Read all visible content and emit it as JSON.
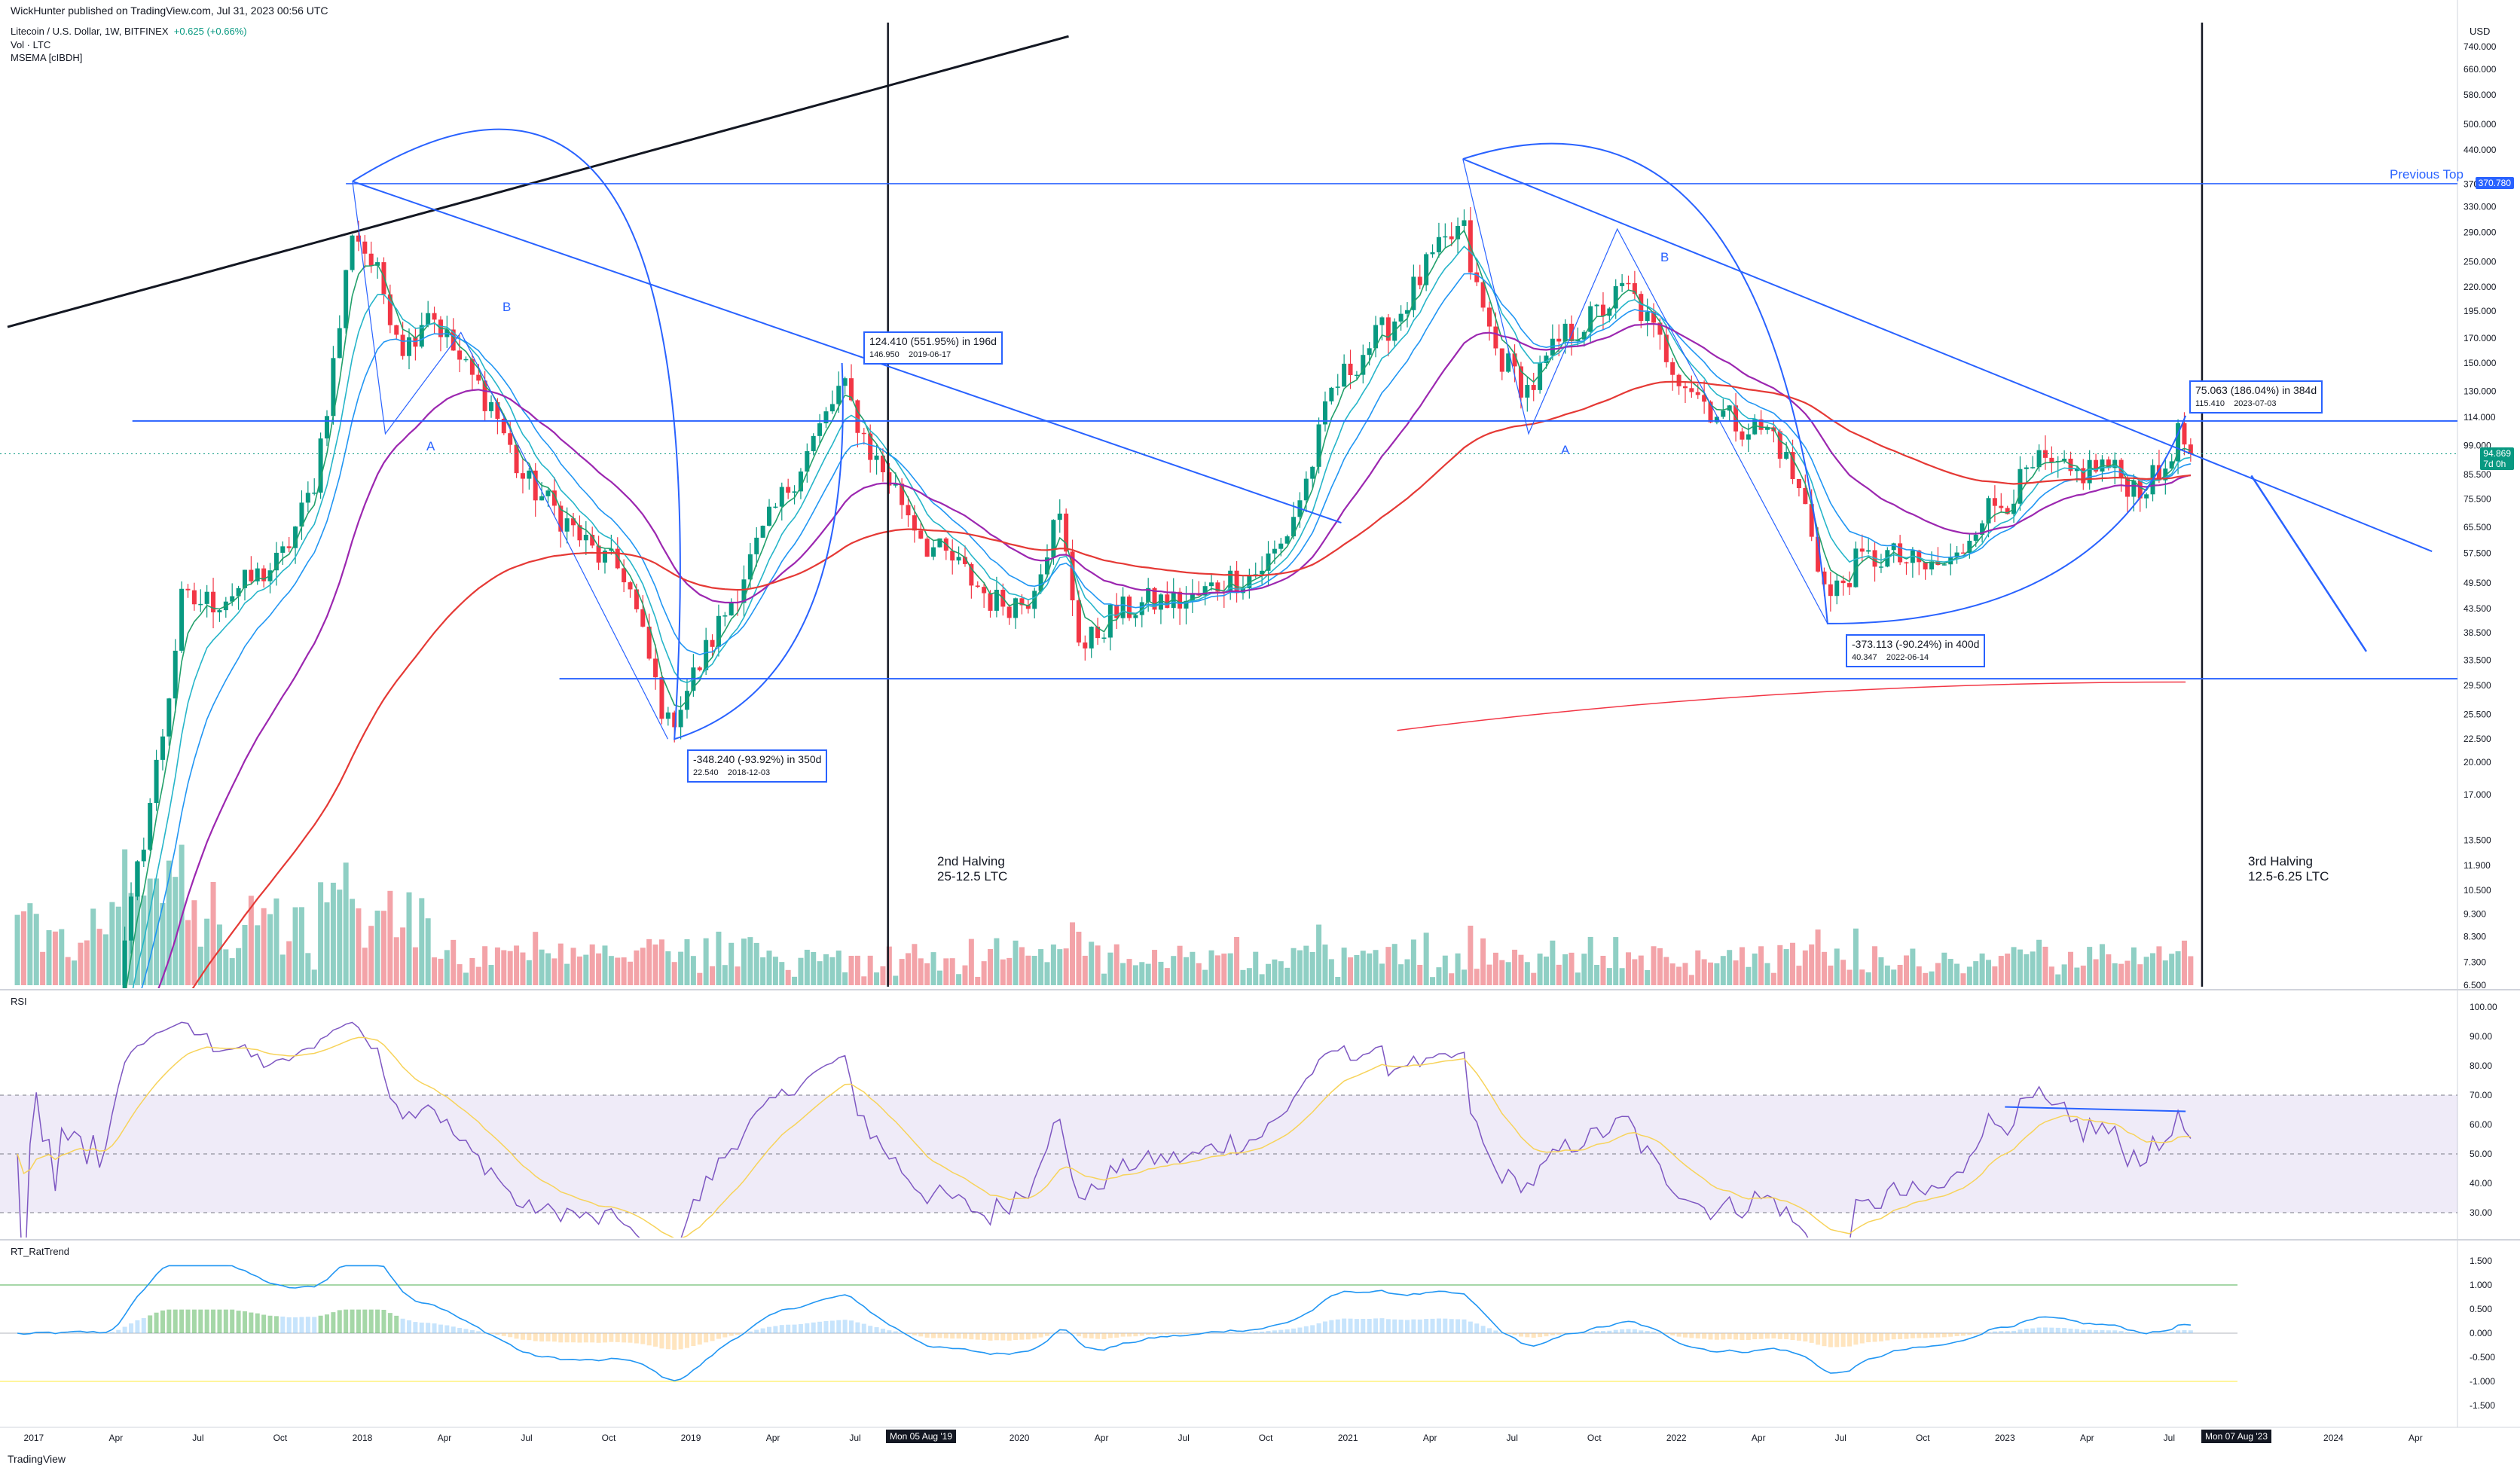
{
  "header": {
    "published": "WickHunter published on TradingView.com, Jul 31, 2023 00:56 UTC",
    "symbol": "Litecoin / U.S. Dollar, 1W, BITFINEX",
    "change": "+0.625 (+0.66%)",
    "indicator_vol": "Vol · LTC",
    "indicator_msema": "MSEMA [cIBDH]",
    "currency": "USD"
  },
  "panes": {
    "rsi_label": "RSI",
    "trend_label": "RT_RatTrend"
  },
  "annotations": {
    "previous_top": "Previous Top",
    "halving2": "2nd Halving\n25-12.5 LTC",
    "halving3": "3rd Halving\n12.5-6.25 LTC",
    "wave_a1": "A",
    "wave_b1": "B",
    "wave_a2": "A",
    "wave_b2": "B",
    "measure1_main": "-348.240 (-93.92%) in 350d",
    "measure1_sub1": "22.540",
    "measure1_sub2": "2018-12-03",
    "measure2_main": "124.410 (551.95%) in 196d",
    "measure2_sub1": "146.950",
    "measure2_sub2": "2019-06-17",
    "measure3_main": "-373.113 (-90.24%) in 400d",
    "measure3_sub1": "40.347",
    "measure3_sub2": "2022-06-14",
    "measure4_main": "75.063 (186.04%) in 384d",
    "measure4_sub1": "115.410",
    "measure4_sub2": "2023-07-03"
  },
  "price_tags": {
    "previous_top": "370.780",
    "last_price": "94.869",
    "countdown": "7d 0h"
  },
  "date_tags": {
    "left": "Mon 05 Aug '19",
    "right": "Mon 07 Aug '23"
  },
  "footer": "TradingView",
  "colors": {
    "up": "#089981",
    "down": "#f23645",
    "vol_up": "#8fcfc4",
    "vol_down": "#f3a3a8",
    "trend": "#2962ff",
    "ema_fast": "#22a06b",
    "ema_mid": "#26b5c9",
    "ema_slow": "#2196f3",
    "ma_purple": "#9c27b0",
    "ma_red": "#e53935",
    "rsi": "#7e57c2",
    "rsi_ma": "#f7d35a"
  },
  "chart_data": {
    "type": "candlestick",
    "title": "Litecoin / U.S. Dollar, 1W, BITFINEX",
    "y_scale": "log",
    "price_ticks": [
      740,
      660,
      580,
      500,
      440,
      370,
      330,
      290,
      250,
      220,
      195,
      170,
      150,
      130,
      114,
      99,
      85.5,
      75.5,
      65.5,
      57.5,
      49.5,
      43.5,
      38.5,
      33.5,
      29.5,
      25.5,
      22.5,
      20,
      17,
      13.5,
      11.9,
      10.5,
      9.3,
      8.3,
      7.3,
      6.5
    ],
    "price_tick_labels": [
      "740.000",
      "660.000",
      "580.000",
      "500.000",
      "440.000",
      "370.000",
      "330.000",
      "290.000",
      "250.000",
      "220.000",
      "195.000",
      "170.000",
      "150.000",
      "130.000",
      "114.000",
      "99.000",
      "85.500",
      "75.500",
      "65.500",
      "57.500",
      "49.500",
      "43.500",
      "38.500",
      "33.500",
      "29.500",
      "25.500",
      "22.500",
      "20.000",
      "17.000",
      "13.500",
      "11.900",
      "10.500",
      "9.300",
      "8.300",
      "7.300",
      "6.500"
    ],
    "x_ticks": [
      "2017",
      "Apr",
      "Jul",
      "Oct",
      "2018",
      "Apr",
      "Jul",
      "Oct",
      "2019",
      "Apr",
      "Jul",
      "Oct",
      "2020",
      "Apr",
      "Jul",
      "Oct",
      "2021",
      "Apr",
      "Jul",
      "Oct",
      "2022",
      "Apr",
      "Jul",
      "Oct",
      "2023",
      "Apr",
      "Jul",
      "Oct",
      "2024",
      "Apr"
    ],
    "x_range": [
      2016.92,
      2024.35
    ],
    "close_series_anchors": [
      [
        2016.95,
        4.0
      ],
      [
        2017.22,
        4.2
      ],
      [
        2017.3,
        10
      ],
      [
        2017.4,
        25
      ],
      [
        2017.45,
        45
      ],
      [
        2017.55,
        45
      ],
      [
        2017.6,
        47
      ],
      [
        2017.75,
        55
      ],
      [
        2017.85,
        80
      ],
      [
        2017.93,
        180
      ],
      [
        2017.97,
        300
      ],
      [
        2018.05,
        230
      ],
      [
        2018.13,
        160
      ],
      [
        2018.2,
        200
      ],
      [
        2018.3,
        150
      ],
      [
        2018.4,
        120
      ],
      [
        2018.48,
        85
      ],
      [
        2018.6,
        70
      ],
      [
        2018.7,
        58
      ],
      [
        2018.8,
        52
      ],
      [
        2018.88,
        32
      ],
      [
        2018.93,
        24
      ],
      [
        2019.0,
        30
      ],
      [
        2019.12,
        45
      ],
      [
        2019.25,
        70
      ],
      [
        2019.4,
        110
      ],
      [
        2019.46,
        135
      ],
      [
        2019.55,
        95
      ],
      [
        2019.62,
        80
      ],
      [
        2019.72,
        60
      ],
      [
        2019.8,
        55
      ],
      [
        2019.92,
        45
      ],
      [
        2020.02,
        45
      ],
      [
        2020.12,
        70
      ],
      [
        2020.19,
        35
      ],
      [
        2020.28,
        42
      ],
      [
        2020.4,
        45
      ],
      [
        2020.52,
        45
      ],
      [
        2020.62,
        50
      ],
      [
        2020.72,
        52
      ],
      [
        2020.8,
        60
      ],
      [
        2020.88,
        85
      ],
      [
        2020.95,
        130
      ],
      [
        2021.05,
        160
      ],
      [
        2021.15,
        190
      ],
      [
        2021.25,
        250
      ],
      [
        2021.35,
        300
      ],
      [
        2021.38,
        230
      ],
      [
        2021.45,
        160
      ],
      [
        2021.55,
        130
      ],
      [
        2021.65,
        170
      ],
      [
        2021.75,
        190
      ],
      [
        2021.85,
        220
      ],
      [
        2021.92,
        180
      ],
      [
        2022.0,
        145
      ],
      [
        2022.1,
        120
      ],
      [
        2022.2,
        110
      ],
      [
        2022.3,
        105
      ],
      [
        2022.4,
        70
      ],
      [
        2022.46,
        45
      ],
      [
        2022.55,
        55
      ],
      [
        2022.65,
        57
      ],
      [
        2022.75,
        53
      ],
      [
        2022.85,
        55
      ],
      [
        2022.92,
        70
      ],
      [
        2023.0,
        75
      ],
      [
        2023.1,
        90
      ],
      [
        2023.2,
        85
      ],
      [
        2023.3,
        90
      ],
      [
        2023.4,
        80
      ],
      [
        2023.48,
        85
      ],
      [
        2023.52,
        105
      ],
      [
        2023.58,
        94.869
      ]
    ],
    "previous_top": 370.78,
    "last_price": 94.869,
    "rsi_ticks": [
      100,
      90,
      80,
      70,
      60,
      50,
      40,
      30
    ],
    "rsi_bands": {
      "upper": 70,
      "mid": 50,
      "lower": 30
    },
    "trend_ticks": [
      1.5,
      1.0,
      0.5,
      0.0,
      -0.5,
      -1.0,
      -1.5
    ],
    "trend_tick_labels": [
      "1.500",
      "1.000",
      "0.500",
      "0.000",
      "-0.500",
      "-1.000",
      "-1.500"
    ]
  }
}
